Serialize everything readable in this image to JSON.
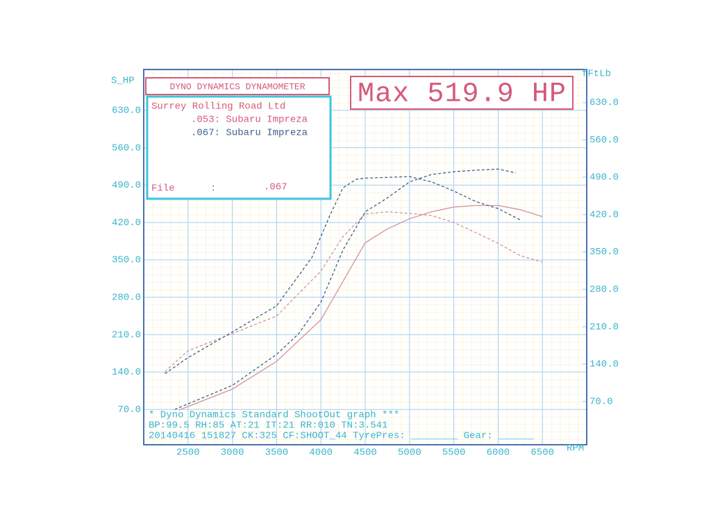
{
  "chart_data": {
    "type": "line",
    "header": "DYNO DYNAMICS DYNAMOMETER",
    "title": "Max 519.9 HP",
    "company": "Surrey Rolling Road Ltd",
    "file_label": "File",
    "file_sep": ":",
    "file_value": ".067",
    "ylabel": "S_HP",
    "y2label": "fFtLb",
    "xlabel": "RPM",
    "footer": [
      "* Dyno Dynamics Standard ShootOut graph ***",
      "BP:99.5  RH:85 AT:21 IT:21  RR:010 TN:3.541",
      "20140416 151827 CK:325 CF:SHOOT_44 TyrePres: ________ Gear: ______"
    ],
    "xlim": [
      2000,
      7000
    ],
    "xticks": [
      2500,
      3000,
      3500,
      4000,
      4500,
      5000,
      5500,
      6000,
      6500
    ],
    "ylim": [
      0,
      700
    ],
    "yticks": [
      {
        "value": 70,
        "label": "70.0"
      },
      {
        "value": 140,
        "label": "140.0"
      },
      {
        "value": 210,
        "label": "210.0"
      },
      {
        "value": 280,
        "label": "280.0"
      },
      {
        "value": 350,
        "label": "350.0"
      },
      {
        "value": 420,
        "label": "420.0"
      },
      {
        "value": 490,
        "label": "490.0"
      },
      {
        "value": 560,
        "label": "560.0"
      },
      {
        "value": 630,
        "label": "630.0"
      }
    ],
    "y2lim": [
      -15,
      685
    ],
    "y2ticks": [
      {
        "value": 70,
        "label": "70.0"
      },
      {
        "value": 140,
        "label": "140.0"
      },
      {
        "value": 210,
        "label": "210.0"
      },
      {
        "value": 280,
        "label": "280.0"
      },
      {
        "value": 350,
        "label": "350.0"
      },
      {
        "value": 420,
        "label": "420.0"
      },
      {
        "value": 490,
        "label": "490.0"
      },
      {
        "value": 560,
        "label": "560.0"
      },
      {
        "value": 630,
        "label": "630.0"
      }
    ],
    "grid": true,
    "runs": [
      {
        "name": ".053: Subaru Impreza",
        "color": "#d4909c",
        "power": {
          "x": [
            2400,
            3000,
            3500,
            4000,
            4250,
            4500,
            4750,
            5000,
            5250,
            5500,
            5750,
            6000,
            6250,
            6500
          ],
          "values": [
            69,
            108,
            160,
            238,
            310,
            382,
            408,
            427,
            440,
            449,
            452,
            452,
            444,
            431
          ]
        },
        "torque": {
          "x": [
            2240,
            2500,
            3000,
            3500,
            4000,
            4250,
            4500,
            4750,
            5000,
            5250,
            5500,
            5750,
            6000,
            6250,
            6500
          ],
          "values": [
            126,
            165,
            197,
            230,
            314,
            379,
            421,
            425,
            422,
            418,
            405,
            386,
            366,
            343,
            331
          ]
        }
      },
      {
        "name": ".067: Subaru Impreza",
        "color": "#3d5f8c",
        "power": {
          "x": [
            2350,
            3000,
            3500,
            3750,
            4000,
            4250,
            4500,
            4750,
            5000,
            5250,
            5500,
            5750,
            6000,
            6200
          ],
          "values": [
            70,
            115,
            173,
            212,
            271,
            369,
            440,
            466,
            496,
            510,
            515,
            518,
            520,
            513
          ]
        },
        "torque": {
          "x": [
            2240,
            2500,
            3000,
            3500,
            3900,
            4100,
            4250,
            4400,
            4500,
            5000,
            5250,
            5500,
            5750,
            6000,
            6250
          ],
          "values": [
            122,
            152,
            200,
            249,
            340,
            418,
            470,
            486,
            488,
            491,
            481,
            464,
            444,
            431,
            410
          ]
        }
      }
    ]
  }
}
